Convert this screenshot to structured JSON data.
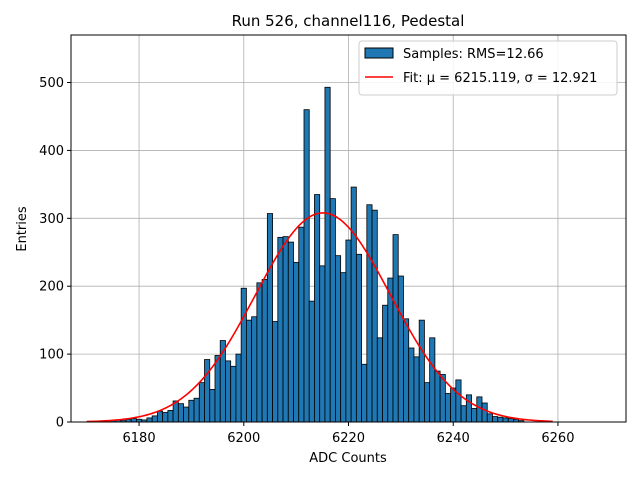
{
  "chart_data": {
    "type": "bar",
    "title": "Run 526, channel116, Pedestal",
    "xlabel": "ADC Counts",
    "ylabel": "Entries",
    "xlim": [
      6167,
      6273
    ],
    "ylim": [
      0,
      570
    ],
    "xticks": [
      6180,
      6200,
      6220,
      6240,
      6260
    ],
    "yticks": [
      0,
      100,
      200,
      300,
      400,
      500
    ],
    "grid": true,
    "legend_position": "top-right",
    "bin_width": 1,
    "bar_color": "#1f77b4",
    "fit_color": "#ff0000",
    "series": [
      {
        "name": "Samples: RMS=12.66",
        "kind": "histogram",
        "x": [
          6175,
          6176,
          6177,
          6178,
          6179,
          6180,
          6181,
          6182,
          6183,
          6184,
          6185,
          6186,
          6187,
          6188,
          6189,
          6190,
          6191,
          6192,
          6193,
          6194,
          6195,
          6196,
          6197,
          6198,
          6199,
          6200,
          6201,
          6202,
          6203,
          6204,
          6205,
          6206,
          6207,
          6208,
          6209,
          6210,
          6211,
          6212,
          6213,
          6214,
          6215,
          6216,
          6217,
          6218,
          6219,
          6220,
          6221,
          6222,
          6223,
          6224,
          6225,
          6226,
          6227,
          6228,
          6229,
          6230,
          6231,
          6232,
          6233,
          6234,
          6235,
          6236,
          6237,
          6238,
          6239,
          6240,
          6241,
          6242,
          6243,
          6244,
          6245,
          6246,
          6247,
          6248,
          6249,
          6250,
          6251,
          6252,
          6253
        ],
        "values": [
          2,
          3,
          2,
          4,
          5,
          4,
          3,
          6,
          9,
          16,
          14,
          17,
          31,
          27,
          22,
          32,
          35,
          58,
          92,
          48,
          98,
          120,
          90,
          82,
          100,
          197,
          150,
          155,
          205,
          210,
          307,
          148,
          272,
          273,
          265,
          235,
          287,
          460,
          178,
          335,
          230,
          493,
          329,
          245,
          220,
          268,
          346,
          247,
          85,
          320,
          312,
          124,
          172,
          212,
          276,
          215,
          152,
          109,
          96,
          150,
          58,
          124,
          75,
          70,
          42,
          50,
          62,
          24,
          40,
          20,
          37,
          28,
          12,
          8,
          7,
          6,
          5,
          4,
          2
        ]
      },
      {
        "name": "Fit: μ = 6215.119, σ = 12.921",
        "kind": "gaussian",
        "mu": 6215.119,
        "sigma": 12.921,
        "amplitude": 308,
        "x_range": [
          6170,
          6259
        ]
      }
    ]
  }
}
